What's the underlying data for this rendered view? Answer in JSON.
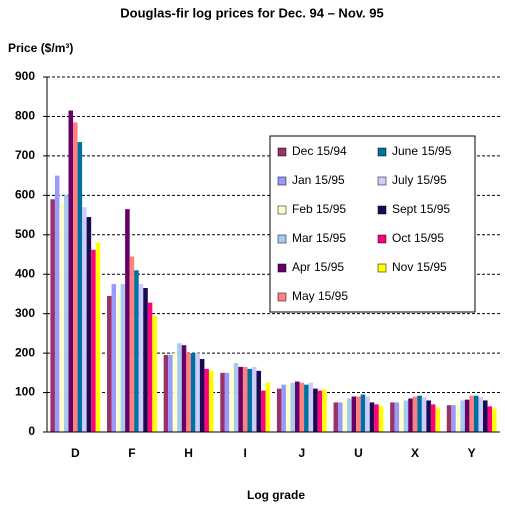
{
  "chart_data": {
    "type": "bar",
    "title": "Douglas-fir log prices for Dec. 94 – Nov. 95",
    "y_label": "Price ($/m³)",
    "x_label": "Log grade",
    "categories": [
      "D",
      "F",
      "H",
      "I",
      "J",
      "U",
      "X",
      "Y"
    ],
    "ylim": [
      0,
      900
    ],
    "yticks": [
      0,
      100,
      200,
      300,
      400,
      500,
      600,
      700,
      800,
      900
    ],
    "grid": true,
    "series": [
      {
        "name": "Dec 15/94",
        "color": "#993366",
        "values": [
          590,
          345,
          195,
          150,
          110,
          75,
          75,
          68
        ]
      },
      {
        "name": "Jan 15/95",
        "color": "#9999ff",
        "values": [
          650,
          375,
          195,
          150,
          120,
          75,
          75,
          68
        ]
      },
      {
        "name": "Feb 15/95",
        "color": "#ffffcc",
        "values": [
          580,
          350,
          200,
          155,
          120,
          80,
          75,
          70
        ]
      },
      {
        "name": "Mar 15/95",
        "color": "#a6caf0",
        "values": [
          600,
          375,
          225,
          175,
          125,
          85,
          80,
          80
        ]
      },
      {
        "name": "Apr 15/95",
        "color": "#660066",
        "values": [
          815,
          565,
          220,
          165,
          128,
          90,
          85,
          82
        ]
      },
      {
        "name": "May 15/95",
        "color": "#ff8080",
        "values": [
          785,
          445,
          200,
          165,
          125,
          90,
          90,
          92
        ]
      },
      {
        "name": "June 15/95",
        "color": "#0070a0",
        "values": [
          735,
          410,
          200,
          160,
          120,
          95,
          92,
          92
        ]
      },
      {
        "name": "July 15/95",
        "color": "#ccccff",
        "values": [
          570,
          375,
          200,
          165,
          125,
          90,
          88,
          88
        ]
      },
      {
        "name": "Sept 15/95",
        "color": "#1a0a50",
        "values": [
          545,
          365,
          185,
          155,
          110,
          75,
          80,
          80
        ]
      },
      {
        "name": "Oct 15/95",
        "color": "#ff0080",
        "values": [
          462,
          328,
          160,
          105,
          105,
          70,
          70,
          65
        ]
      },
      {
        "name": "Nov 15/95",
        "color": "#ffff00",
        "values": [
          480,
          295,
          155,
          125,
          108,
          65,
          62,
          60
        ]
      }
    ]
  }
}
